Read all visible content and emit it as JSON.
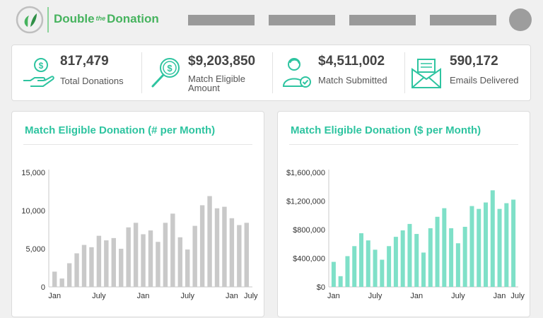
{
  "header": {
    "brand_left": "Double",
    "brand_mid": "the",
    "brand_right": "Donation",
    "brand_color": "#46b35e",
    "logo_icon": "double-the-donation-logo",
    "nav_placeholders": 4,
    "avatar_icon": "user-avatar"
  },
  "stats": [
    {
      "icon": "hand-coin-icon",
      "value": "817,479",
      "label": "Total Donations"
    },
    {
      "icon": "magnifier-dollar-icon",
      "value": "$9,203,850",
      "label_line1": "Match Eligible",
      "label_line2": "Amount"
    },
    {
      "icon": "person-check-icon",
      "value": "$4,511,002",
      "label": "Match Submitted"
    },
    {
      "icon": "envelope-icon",
      "value": "590,172",
      "label": "Emails Delivered"
    }
  ],
  "chart_data": [
    {
      "type": "bar",
      "title": "Match Eligible Donation (# per Month)",
      "color": "#c9c9c9",
      "ylim": [
        0,
        15000
      ],
      "y_ticks": [
        0,
        5000,
        10000,
        15000
      ],
      "y_tick_labels": [
        "0",
        "5,000",
        "10,000",
        "15,000"
      ],
      "x_tick_labels": [
        "Jan",
        "July",
        "Jan",
        "July",
        "Jan",
        "July"
      ],
      "x_tick_indices": [
        0,
        6,
        12,
        18,
        24,
        30
      ],
      "values": [
        2000,
        1100,
        3100,
        4400,
        5500,
        5200,
        6700,
        6100,
        6400,
        5000,
        7800,
        8400,
        6900,
        7400,
        5900,
        8400,
        9600,
        6500,
        4900,
        8000,
        10700,
        11900,
        10300,
        10500,
        9000,
        8100,
        8400
      ],
      "grid": false
    },
    {
      "type": "bar",
      "title": "Match Eligible Donation ($ per Month)",
      "color": "#7fe0c8",
      "ylim": [
        0,
        1600000
      ],
      "y_ticks": [
        0,
        400000,
        800000,
        1200000,
        1600000
      ],
      "y_tick_labels": [
        "$0",
        "$400,000",
        "$800,000",
        "$1,200,000",
        "$1,600,000"
      ],
      "x_tick_labels": [
        "Jan",
        "July",
        "Jan",
        "July",
        "Jan",
        "July"
      ],
      "x_tick_indices": [
        0,
        6,
        12,
        18,
        24,
        30
      ],
      "values": [
        350000,
        150000,
        430000,
        570000,
        750000,
        650000,
        520000,
        380000,
        570000,
        700000,
        790000,
        880000,
        740000,
        480000,
        820000,
        980000,
        1100000,
        820000,
        610000,
        840000,
        1130000,
        1090000,
        1180000,
        1350000,
        1090000,
        1170000,
        1220000
      ],
      "grid": false
    }
  ]
}
